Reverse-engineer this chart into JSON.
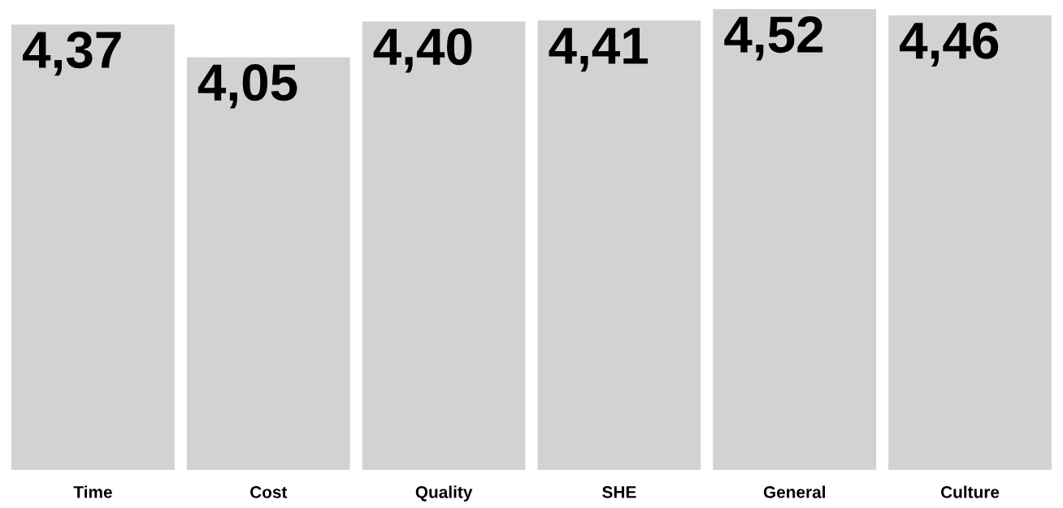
{
  "chart_data": {
    "type": "bar",
    "categories": [
      "Time",
      "Cost",
      "Quality",
      "SHE",
      "General",
      "Culture"
    ],
    "values": [
      4.37,
      4.05,
      4.4,
      4.41,
      4.52,
      4.46
    ],
    "value_labels": [
      "4,37",
      "4,05",
      "4,40",
      "4,41",
      "4,52",
      "4,46"
    ],
    "color": "#d1d2d4",
    "tick_labels": "x",
    "grid": false,
    "legend": false
  }
}
